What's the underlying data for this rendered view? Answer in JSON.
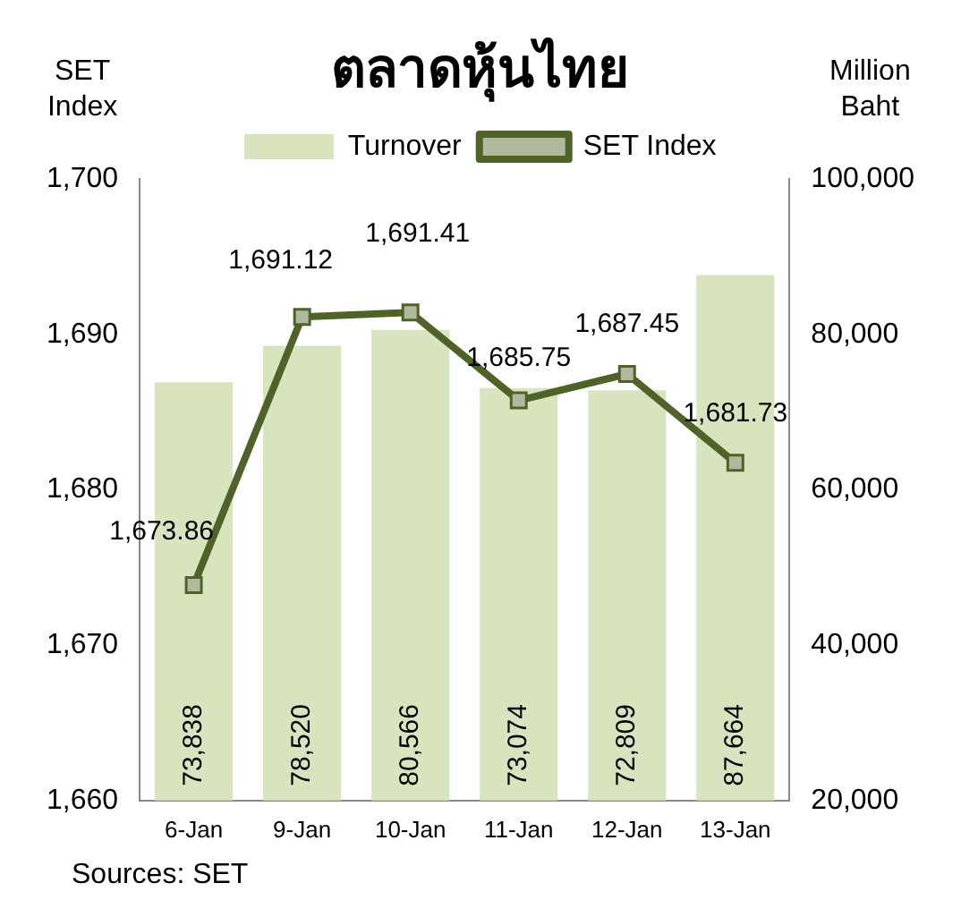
{
  "chart_data": {
    "type": "bar",
    "title": "ตลาดหุ้นไทย",
    "ylabel": "SET Index",
    "y2label": "Million Baht",
    "categories": [
      "6-Jan",
      "9-Jan",
      "10-Jan",
      "11-Jan",
      "12-Jan",
      "13-Jan"
    ],
    "series": [
      {
        "name": "Turnover",
        "axis": "y2",
        "color": "#d7e4bd",
        "values": [
          73838,
          78520,
          80566,
          73074,
          72809,
          87664
        ],
        "value_labels": [
          "73,838",
          "78,520",
          "80,566",
          "73,074",
          "72,809",
          "87,664"
        ]
      },
      {
        "name": "SET Index",
        "type": "line",
        "axis": "y",
        "color": "#4f6228",
        "values": [
          1673.86,
          1691.12,
          1691.41,
          1685.75,
          1687.45,
          1681.73
        ],
        "value_labels": [
          "1,673.86",
          "1,691.12",
          "1,691.41",
          "1,685.75",
          "1,687.45",
          "1,681.73"
        ]
      }
    ],
    "marker": "square",
    "legend": "top",
    "grid": false,
    "ylim": [
      1660,
      1700
    ],
    "yticks": [
      {
        "value": 1660,
        "label": "1,660"
      },
      {
        "value": 1670,
        "label": "1,670"
      },
      {
        "value": 1680,
        "label": "1,680"
      },
      {
        "value": 1690,
        "label": "1,690"
      },
      {
        "value": 1700,
        "label": "1,700"
      }
    ],
    "y2lim": [
      20000,
      100000
    ],
    "y2ticks": [
      {
        "value": 20000,
        "label": "20,000"
      },
      {
        "value": 40000,
        "label": "40,000"
      },
      {
        "value": 60000,
        "label": "60,000"
      },
      {
        "value": 80000,
        "label": "80,000"
      },
      {
        "value": 100000,
        "label": "100,000"
      }
    ],
    "annotations": [
      "Sources: SET"
    ]
  }
}
